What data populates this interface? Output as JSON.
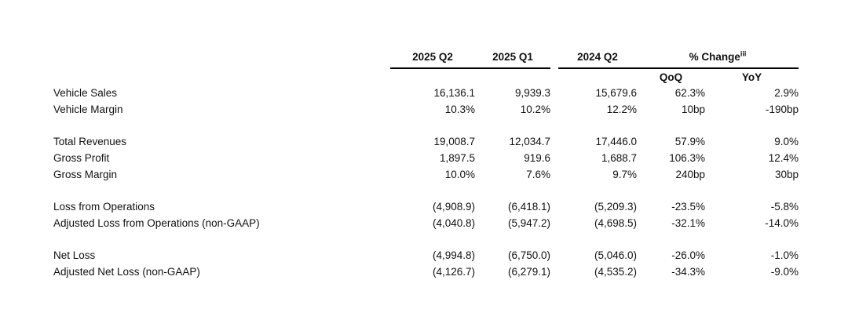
{
  "table": {
    "header": {
      "col_2025_q2": "2025 Q2",
      "col_2025_q1": "2025 Q1",
      "col_2024_q2": "2024 Q2",
      "pct_change": "% Change",
      "pct_change_superscript": "iii",
      "qoq": "QoQ",
      "yoy": "YoY"
    },
    "rows": [
      {
        "label": "Vehicle Sales",
        "q2_2025": "16,136.1",
        "q1_2025": "9,939.3",
        "q2_2024": "15,679.6",
        "qoq": "62.3%",
        "yoy": "2.9%"
      },
      {
        "label": "Vehicle Margin",
        "q2_2025": "10.3%",
        "q1_2025": "10.2%",
        "q2_2024": "12.2%",
        "qoq": "10bp",
        "yoy": "-190bp"
      },
      {
        "separator": true
      },
      {
        "label": "Total Revenues",
        "q2_2025": "19,008.7",
        "q1_2025": "12,034.7",
        "q2_2024": "17,446.0",
        "qoq": "57.9%",
        "yoy": "9.0%"
      },
      {
        "label": "Gross Profit",
        "q2_2025": "1,897.5",
        "q1_2025": "919.6",
        "q2_2024": "1,688.7",
        "qoq": "106.3%",
        "yoy": "12.4%"
      },
      {
        "label": "Gross Margin",
        "q2_2025": "10.0%",
        "q1_2025": "7.6%",
        "q2_2024": "9.7%",
        "qoq": "240bp",
        "yoy": "30bp"
      },
      {
        "separator": true
      },
      {
        "label": "Loss from Operations",
        "q2_2025": "(4,908.9)",
        "q1_2025": "(6,418.1)",
        "q2_2024": "(5,209.3)",
        "qoq": "-23.5%",
        "yoy": "-5.8%"
      },
      {
        "label": "Adjusted Loss from Operations (non-GAAP)",
        "q2_2025": "(4,040.8)",
        "q1_2025": "(5,947.2)",
        "q2_2024": "(4,698.5)",
        "qoq": "-32.1%",
        "yoy": "-14.0%"
      },
      {
        "separator": true
      },
      {
        "label": "Net Loss",
        "q2_2025": "(4,994.8)",
        "q1_2025": "(6,750.0)",
        "q2_2024": "(5,046.0)",
        "qoq": "-26.0%",
        "yoy": "-1.0%"
      },
      {
        "label": "Adjusted Net Loss (non-GAAP)",
        "q2_2025": "(4,126.7)",
        "q1_2025": "(6,279.1)",
        "q2_2024": "(4,535.2)",
        "qoq": "-34.3%",
        "yoy": "-9.0%"
      }
    ]
  }
}
